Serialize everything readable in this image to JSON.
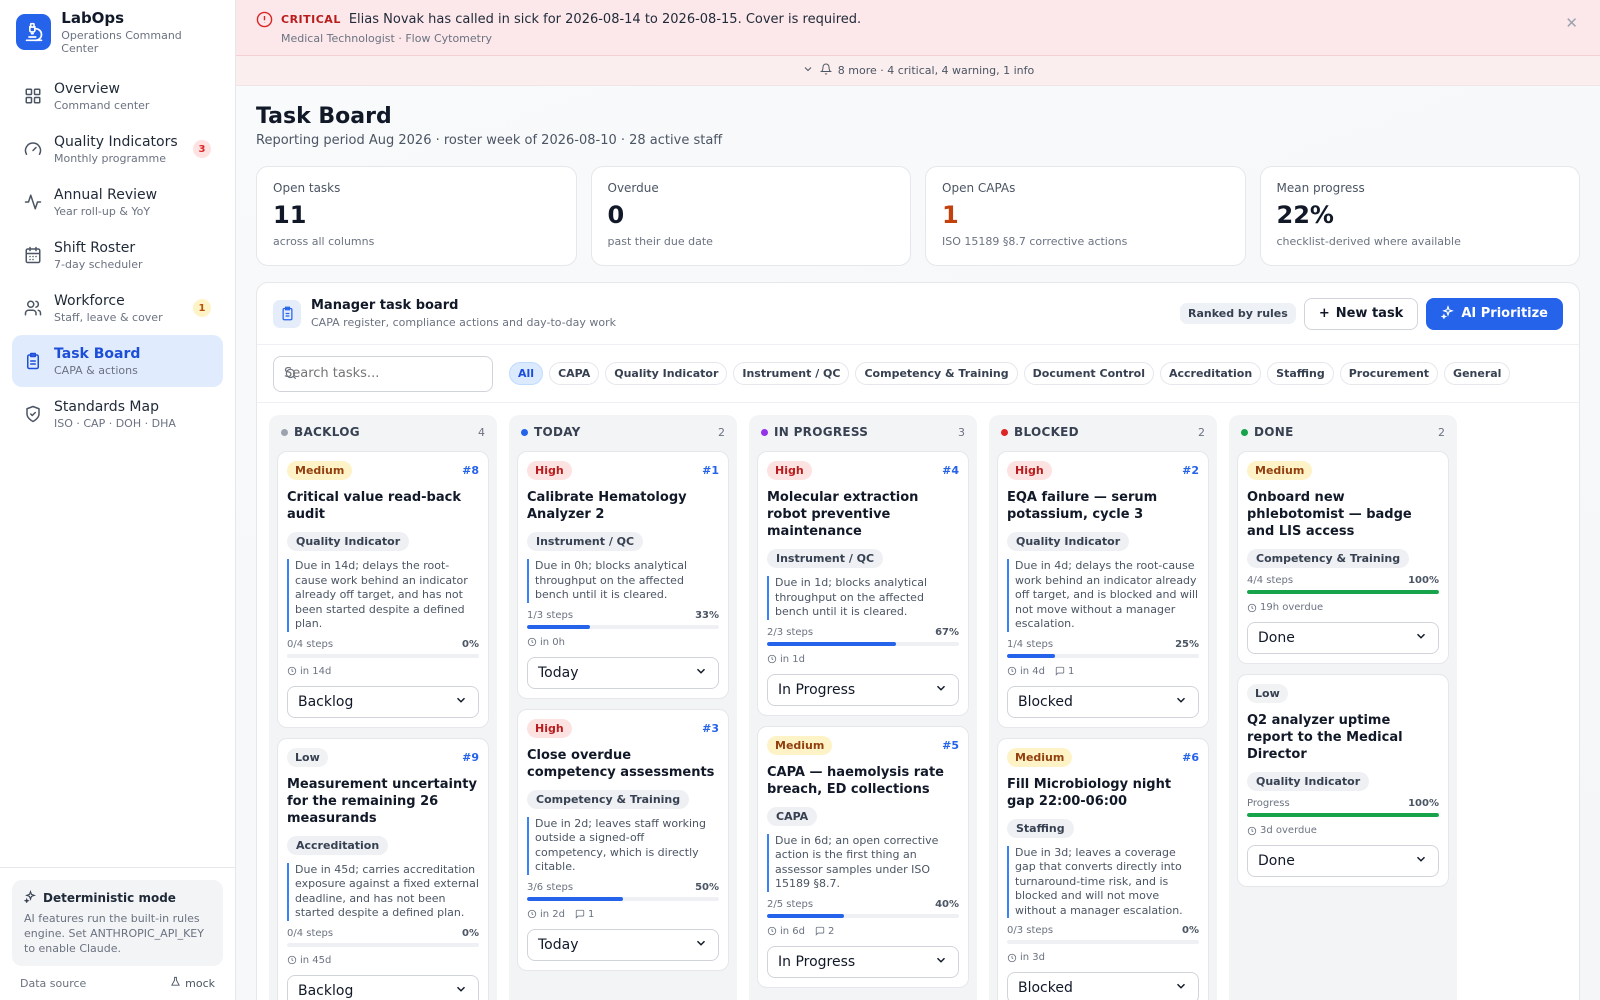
{
  "brand": {
    "name": "LabOps",
    "subtitle": "Operations Command Center"
  },
  "nav": [
    {
      "label": "Overview",
      "sub": "Command center",
      "icon": "grid-icon"
    },
    {
      "label": "Quality Indicators",
      "sub": "Monthly programme",
      "icon": "gauge-icon",
      "badge": "3"
    },
    {
      "label": "Annual Review",
      "sub": "Year roll-up & YoY",
      "icon": "activity-icon"
    },
    {
      "label": "Shift Roster",
      "sub": "7-day scheduler",
      "icon": "calendar-icon"
    },
    {
      "label": "Workforce",
      "sub": "Staff, leave & cover",
      "icon": "users-icon",
      "badge": "1"
    },
    {
      "label": "Task Board",
      "sub": "CAPA & actions",
      "icon": "clipboard-icon",
      "active": true
    },
    {
      "label": "Standards Map",
      "sub": "ISO · CAP · DOH · DHA",
      "icon": "shield-icon"
    }
  ],
  "footer": {
    "mode_title": "Deterministic mode",
    "mode_text": "AI features run the built-in rules engine. Set ANTHROPIC_API_KEY to enable Claude.",
    "data_source_label": "Data source",
    "data_source_value": "mock"
  },
  "alert": {
    "level": "CRITICAL",
    "message": "Elias Novak has called in sick for 2026-08-14 to 2026-08-15. Cover is required.",
    "sub": "Medical Technologist · Flow Cytometry",
    "more": "8 more · 4 critical, 4 warning, 1 info"
  },
  "page": {
    "title": "Task Board",
    "subtitle": "Reporting period Aug 2026 · roster week of 2026-08-10 · 28 active staff"
  },
  "kpis": [
    {
      "label": "Open tasks",
      "value": "11",
      "note": "across all columns",
      "color": "#111827"
    },
    {
      "label": "Overdue",
      "value": "0",
      "note": "past their due date",
      "color": "#111827"
    },
    {
      "label": "Open CAPAs",
      "value": "1",
      "note": "ISO 15189 §8.7 corrective actions",
      "color": "#c2410c"
    },
    {
      "label": "Mean progress",
      "value": "22%",
      "note": "checklist-derived where available",
      "color": "#111827"
    }
  ],
  "board": {
    "title": "Manager task board",
    "subtitle": "CAPA register, compliance actions and day-to-day work",
    "ranked": "Ranked by rules",
    "new_task": "New task",
    "ai_prioritize": "AI Prioritize",
    "search_placeholder": "Search tasks..."
  },
  "filters": [
    "All",
    "CAPA",
    "Quality Indicator",
    "Instrument / QC",
    "Competency & Training",
    "Document Control",
    "Accreditation",
    "Staffing",
    "Procurement",
    "General"
  ],
  "columns": [
    {
      "name": "BACKLOG",
      "count": "4",
      "dot": "#9ca3af",
      "cards": [
        {
          "priority": "Medium",
          "id": "#8",
          "title": "Critical value read-back audit",
          "category": "Quality Indicator",
          "reason": "Due in 14d; delays the root-cause work behind an indicator already off target, and has not been started despite a defined plan.",
          "steps": "0/4 steps",
          "pct": "0%",
          "progress": 0,
          "due": "in 14d",
          "status": "Backlog"
        },
        {
          "priority": "Low",
          "id": "#9",
          "title": "Measurement uncertainty for the remaining 26 measurands",
          "category": "Accreditation",
          "reason": "Due in 45d; carries accreditation exposure against a fixed external deadline, and has not been started despite a defined plan.",
          "steps": "0/4 steps",
          "pct": "0%",
          "progress": 0,
          "due": "in 45d",
          "status": "Backlog"
        }
      ]
    },
    {
      "name": "TODAY",
      "count": "2",
      "dot": "#2563eb",
      "cards": [
        {
          "priority": "High",
          "id": "#1",
          "title": "Calibrate Hematology Analyzer 2",
          "category": "Instrument / QC",
          "reason": "Due in 0h; blocks analytical throughput on the affected bench until it is cleared.",
          "steps": "1/3 steps",
          "pct": "33%",
          "progress": 33,
          "due": "in 0h",
          "status": "Today"
        },
        {
          "priority": "High",
          "id": "#3",
          "title": "Close overdue competency assessments",
          "category": "Competency & Training",
          "reason": "Due in 2d; leaves staff working outside a signed-off competency, which is directly citable.",
          "steps": "3/6 steps",
          "pct": "50%",
          "progress": 50,
          "due": "in 2d",
          "comments": "1",
          "status": "Today"
        }
      ]
    },
    {
      "name": "IN PROGRESS",
      "count": "3",
      "dot": "#9333ea",
      "cards": [
        {
          "priority": "High",
          "id": "#4",
          "title": "Molecular extraction robot preventive maintenance",
          "category": "Instrument / QC",
          "reason": "Due in 1d; blocks analytical throughput on the affected bench until it is cleared.",
          "steps": "2/3 steps",
          "pct": "67%",
          "progress": 67,
          "due": "in 1d",
          "status": "In Progress"
        },
        {
          "priority": "Medium",
          "id": "#5",
          "title": "CAPA — haemolysis rate breach, ED collections",
          "category": "CAPA",
          "reason": "Due in 6d; an open corrective action is the first thing an assessor samples under ISO 15189 §8.7.",
          "steps": "2/5 steps",
          "pct": "40%",
          "progress": 40,
          "due": "in 6d",
          "comments": "2",
          "status": "In Progress"
        }
      ]
    },
    {
      "name": "BLOCKED",
      "count": "2",
      "dot": "#dc2626",
      "cards": [
        {
          "priority": "High",
          "id": "#2",
          "title": "EQA failure — serum potassium, cycle 3",
          "category": "Quality Indicator",
          "reason": "Due in 4d; delays the root-cause work behind an indicator already off target, and is blocked and will not move without a manager escalation.",
          "steps": "1/4 steps",
          "pct": "25%",
          "progress": 25,
          "due": "in 4d",
          "comments": "1",
          "status": "Blocked"
        },
        {
          "priority": "Medium",
          "id": "#6",
          "title": "Fill Microbiology night gap 22:00-06:00",
          "category": "Staffing",
          "reason": "Due in 3d; leaves a coverage gap that converts directly into turnaround-time risk, and is blocked and will not move without a manager escalation.",
          "steps": "0/3 steps",
          "pct": "0%",
          "progress": 0,
          "due": "in 3d",
          "status": "Blocked"
        }
      ]
    },
    {
      "name": "DONE",
      "count": "2",
      "dot": "#16a34a",
      "cards": [
        {
          "priority": "Medium",
          "id": "",
          "title": "Onboard new phlebotomist — badge and LIS access",
          "category": "Competency & Training",
          "reason": "",
          "steps": "4/4 steps",
          "pct": "100%",
          "progress": 100,
          "due": "19h overdue",
          "status": "Done"
        },
        {
          "priority": "Low",
          "id": "",
          "title": "Q2 analyzer uptime report to the Medical Director",
          "category": "Quality Indicator",
          "reason": "",
          "steps": "Progress",
          "pct": "100%",
          "progress": 100,
          "due": "3d overdue",
          "status": "Done"
        }
      ]
    }
  ]
}
